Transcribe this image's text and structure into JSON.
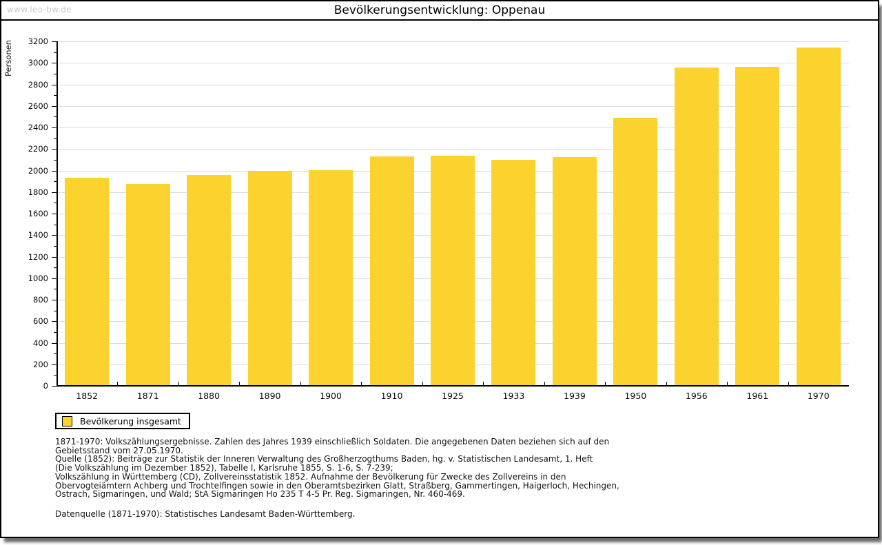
{
  "header": {
    "watermark": "www.leo-bw.de",
    "title": "Bevölkerungsentwicklung: Oppenau"
  },
  "chart_data": {
    "type": "bar",
    "title": "Bevölkerungsentwicklung: Oppenau",
    "xlabel": "",
    "ylabel": "Personen",
    "categories": [
      "1852",
      "1871",
      "1880",
      "1890",
      "1900",
      "1910",
      "1925",
      "1933",
      "1939",
      "1950",
      "1956",
      "1961",
      "1970"
    ],
    "series": [
      {
        "name": "Bevölkerung insgesamt",
        "values": [
          1935,
          1875,
          1960,
          1995,
          2005,
          2130,
          2140,
          2100,
          2125,
          2490,
          2960,
          2965,
          3140
        ]
      }
    ],
    "ylim": [
      0,
      3200
    ],
    "y_major_step": 200,
    "y_minor_step": 100,
    "grid": true,
    "legend_position": "bottom-left",
    "colors": {
      "bar": "#fcd32e",
      "grid": "#dcdcdc",
      "axis": "#000000",
      "watermark": "#c9c9c9"
    }
  },
  "legend": {
    "label": "Bevölkerung insgesamt"
  },
  "footer": {
    "notes": [
      "1871-1970: Volkszählungsergebnisse. Zahlen des Jahres 1939 einschließlich Soldaten. Die angegebenen Daten beziehen sich auf den",
      "Gebietsstand vom 27.05.1970.",
      "Quelle (1852): Beiträge zur Statistik der Inneren Verwaltung des Großherzogthums Baden, hg. v. Statistischen Landesamt, 1. Heft",
      "(Die Volkszählung im Dezember 1852), Tabelle I, Karlsruhe 1855, S. 1-6, S. 7-239;",
      "Volkszählung in Württemberg (CD), Zollvereinsstatistik 1852. Aufnahme der Bevölkerung für Zwecke des Zollvereins in den",
      "Obervogteiämtern Achberg und Trochtelfingen sowie in den Oberamtsbezirken Glatt, Straßberg, Gammertingen, Haigerloch, Hechingen,",
      "Ostrach, Sigmaringen, und Wald; StA Sigmaringen Ho 235 T 4-5 Pr. Reg. Sigmaringen, Nr. 460-469."
    ],
    "datasource": "Datenquelle (1871-1970): Statistisches Landesamt Baden-Württemberg."
  }
}
